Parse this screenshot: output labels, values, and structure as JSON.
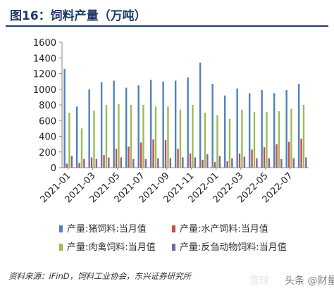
{
  "title": "图16：饲料产量（万吨）",
  "source": "资料来源：iFinD，饲料工业协会，东兴证券研究所",
  "watermark": {
    "left": "雪球",
    "right": "头条 @财量"
  },
  "colors": {
    "pig": "#4f81bd",
    "aqua": "#c0504d",
    "poultry": "#9bbb59",
    "ruminant": "#8064a2"
  },
  "chart_data": {
    "type": "bar",
    "title": "饲料产量（万吨）",
    "categories": [
      "2021-01",
      "2021-02",
      "2021-03",
      "2021-04",
      "2021-05",
      "2021-06",
      "2021-07",
      "2021-08",
      "2021-09",
      "2021-10",
      "2021-11",
      "2021-12",
      "2022-01",
      "2022-02",
      "2022-03",
      "2022-04",
      "2022-05",
      "2022-06",
      "2022-07",
      "2022-08"
    ],
    "tick_labels": [
      "2021-01",
      "2021-03",
      "2021-05",
      "2021-07",
      "2021-09",
      "2021-11",
      "2022-01",
      "2022-03",
      "2022-05",
      "2022-07"
    ],
    "ylim": [
      0,
      1600
    ],
    "yticks": [
      0,
      200,
      400,
      600,
      800,
      1000,
      1200,
      1400,
      1600
    ],
    "legend_position": "bottom",
    "series": [
      {
        "name": "产量:猪饲料:当月值",
        "color": "#4f81bd",
        "values": [
          1260,
          780,
          1000,
          1090,
          1110,
          1020,
          1050,
          1120,
          1100,
          1110,
          1150,
          1340,
          1070,
          920,
          1010,
          950,
          990,
          950,
          990,
          1070
        ]
      },
      {
        "name": "产量:水产饲料:当月值",
        "color": "#c0504d",
        "values": [
          50,
          60,
          130,
          160,
          240,
          270,
          320,
          360,
          350,
          240,
          180,
          100,
          70,
          80,
          180,
          230,
          260,
          300,
          330,
          370
        ]
      },
      {
        "name": "产量:肉禽饲料:当月值",
        "color": "#9bbb59",
        "values": [
          700,
          500,
          730,
          800,
          810,
          800,
          800,
          780,
          780,
          740,
          800,
          700,
          670,
          620,
          740,
          710,
          710,
          720,
          750,
          800
        ]
      },
      {
        "name": "产量:反刍动物饲料:当月值",
        "color": "#8064a2",
        "values": [
          150,
          110,
          110,
          130,
          130,
          110,
          110,
          120,
          120,
          130,
          130,
          170,
          150,
          120,
          140,
          120,
          120,
          110,
          120,
          130
        ]
      }
    ]
  }
}
